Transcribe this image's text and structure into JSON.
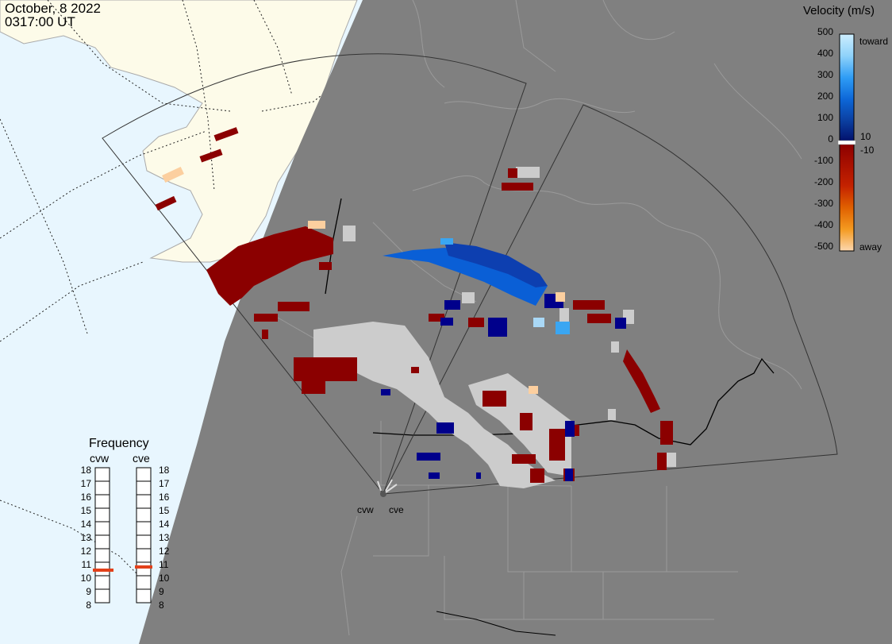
{
  "timestamp": {
    "date": "October, 8 2022",
    "time": "0317:00 UT"
  },
  "colorbar": {
    "title": "Velocity (m/s)",
    "ticks": [
      "500",
      "400",
      "300",
      "200",
      "100",
      "0",
      "-100",
      "-200",
      "-300",
      "-400",
      "-500"
    ],
    "inner_labels": [
      "10",
      "-10"
    ],
    "toward_label": "toward",
    "away_label": "away",
    "stops": [
      "#cdeefe",
      "#8fd2fa",
      "#2f9df5",
      "#0d67d8",
      "#0b3fa0",
      "#02106b",
      "#8b0000",
      "#a81000",
      "#d24a00",
      "#f08a00",
      "#fcd8b0"
    ]
  },
  "frequency": {
    "title": "Frequency",
    "radars": [
      {
        "name": "cvw",
        "value_mhz": 10.6
      },
      {
        "name": "cve",
        "value_mhz": 10.9
      }
    ],
    "scale": [
      "18",
      "17",
      "16",
      "15",
      "14",
      "13",
      "12",
      "11",
      "10",
      "9",
      "8"
    ]
  },
  "radars": [
    {
      "name": "cvw"
    },
    {
      "name": "cve"
    }
  ],
  "colors": {
    "ocean": "#e8f6fe",
    "land": "#fdfbe9",
    "night": "#808080",
    "ground_scatter": "#cccccc",
    "dark_red": "#8b0000",
    "dark_blue": "#00008b",
    "blue": "#0a5fd6",
    "light_blue": "#a9d8f6",
    "peach": "#fccf9f",
    "indicator": "#e2401a"
  }
}
